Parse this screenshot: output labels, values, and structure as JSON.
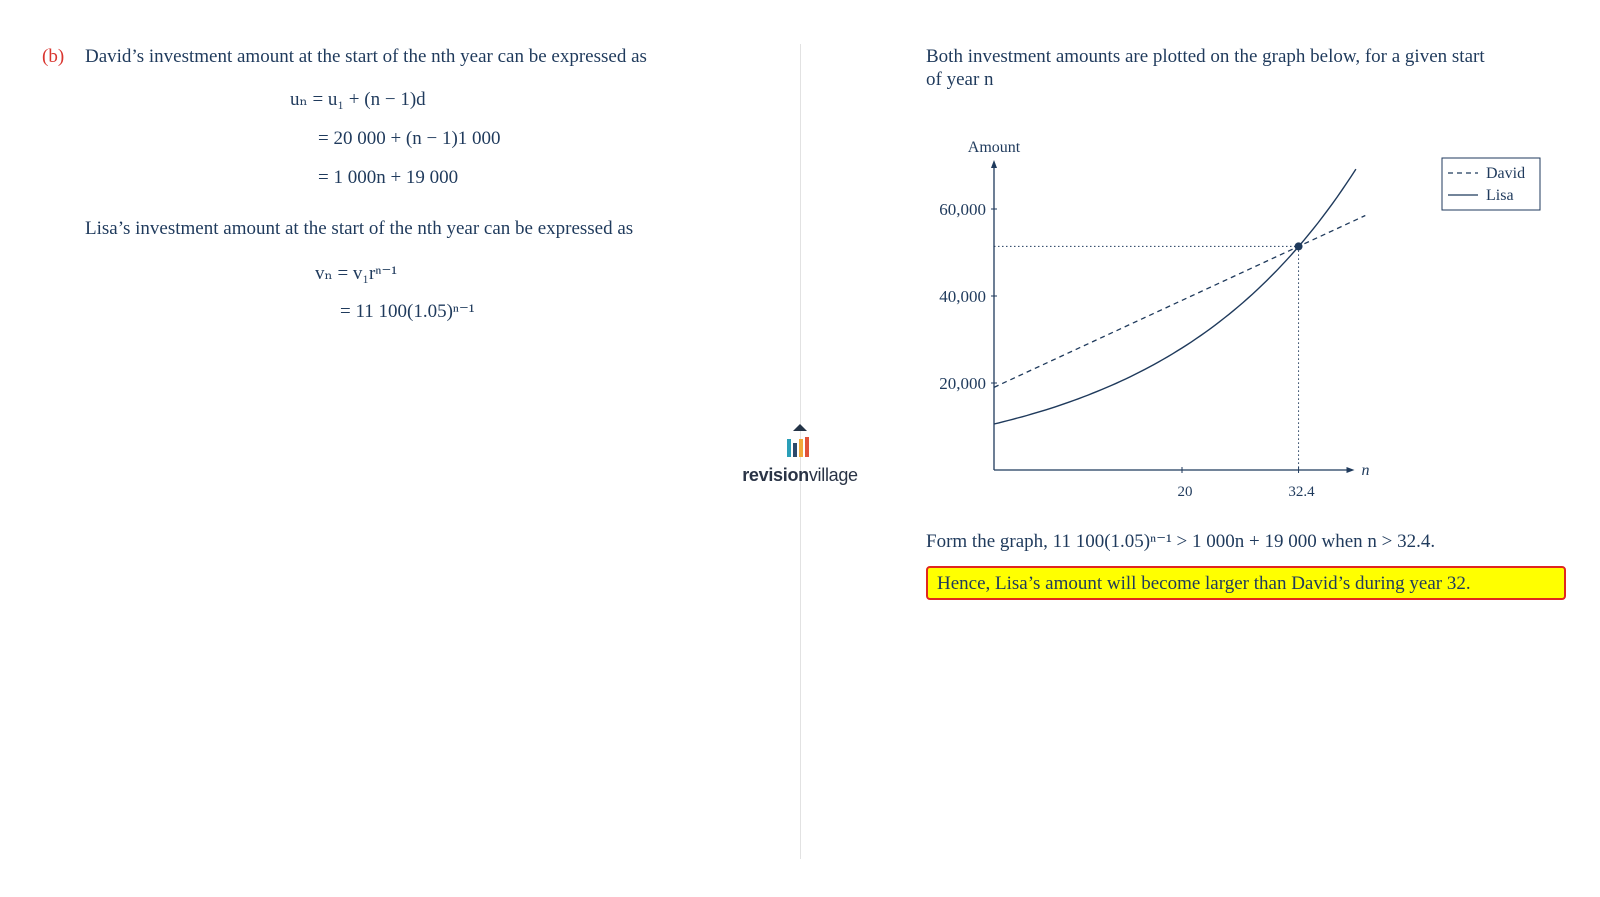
{
  "left": {
    "part_label": "(b)",
    "david_intro": "David’s investment amount at the start of the nth year can be expressed as",
    "david_eq1": "uₙ = u₁ + (n − 1)d",
    "david_eq2": "= 20 000 + (n − 1)1 000",
    "david_eq3": "= 1 000n + 19 000",
    "lisa_intro": "Lisa’s investment amount at the start of the nth year can be expressed as",
    "lisa_eq1": "vₙ = v₁rⁿ⁻¹",
    "lisa_eq2": "= 11 100(1.05)ⁿ⁻¹"
  },
  "logo": {
    "text_bold": "revision",
    "text_light": "village"
  },
  "right": {
    "intro_line1": "Both investment amounts are plotted on the graph below, for a given start",
    "intro_line2": "of year n",
    "conclusion": "Form the graph, 11 100(1.05)ⁿ⁻¹ > 1 000n + 19 000 when n > 32.4.",
    "answer": "Hence, Lisa’s amount will become larger than David’s during year 32."
  },
  "colors": {
    "text": "#1f3a5c",
    "accent_red": "#d9352f",
    "highlight": "#ffff00"
  },
  "chart_data": {
    "type": "line",
    "ylabel": "Amount",
    "xlabel": "n",
    "ytick_labels": [
      "20,000",
      "40,000",
      "60,000"
    ],
    "ytick_values": [
      20000,
      40000,
      60000
    ],
    "xtick_labels": [
      "20",
      "32.4"
    ],
    "xtick_values": [
      20,
      32.4
    ],
    "xlim": [
      0,
      40
    ],
    "ylim": [
      0,
      68000
    ],
    "legend_position": "top-right",
    "series": [
      {
        "name": "David",
        "style": "dashed",
        "formula": "1000n + 19000",
        "x": [
          0,
          39.5
        ],
        "y": [
          19000,
          58500
        ]
      },
      {
        "name": "Lisa",
        "style": "solid",
        "formula": "11100(1.05)^(n-1)",
        "x_start": 0,
        "x_end": 38.9
      }
    ],
    "intersection": {
      "x": 32.4,
      "y": 51400
    }
  }
}
